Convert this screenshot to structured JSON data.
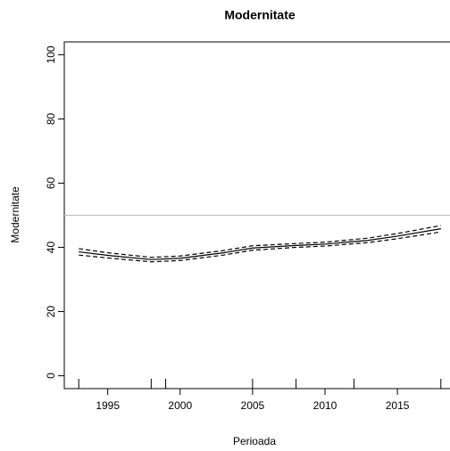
{
  "chart_data": {
    "type": "line",
    "title": "Modernitate",
    "xlabel": "Perioada",
    "ylabel": "Modernitate",
    "x": [
      1993,
      1995,
      1998,
      2000,
      2003,
      2005,
      2008,
      2010,
      2013,
      2015,
      2018
    ],
    "series": [
      {
        "color": "#000000",
        "dash": false,
        "values": [
          38.6,
          37.5,
          36.2,
          36.6,
          38.3,
          39.8,
          40.6,
          41.0,
          42.2,
          43.5,
          45.8
        ]
      },
      {
        "color": "#000000",
        "dash": true,
        "values": [
          37.6,
          36.7,
          35.5,
          35.9,
          37.6,
          39.1,
          40.0,
          40.4,
          41.5,
          42.7,
          44.8
        ]
      },
      {
        "color": "#000000",
        "dash": true,
        "values": [
          39.6,
          38.3,
          36.9,
          37.3,
          39.0,
          40.5,
          41.2,
          41.6,
          42.9,
          44.3,
          46.8
        ]
      }
    ],
    "hline": 50,
    "hline_color": "#bbbbbb",
    "rug": [
      1993,
      1998,
      1999,
      2005,
      2008,
      2012,
      2018
    ],
    "xlim": [
      1992,
      2019
    ],
    "xticks": [
      1995,
      2000,
      2005,
      2010,
      2015
    ],
    "ylim": [
      -4,
      104
    ],
    "yticks": [
      0,
      20,
      40,
      60,
      80,
      100
    ]
  }
}
